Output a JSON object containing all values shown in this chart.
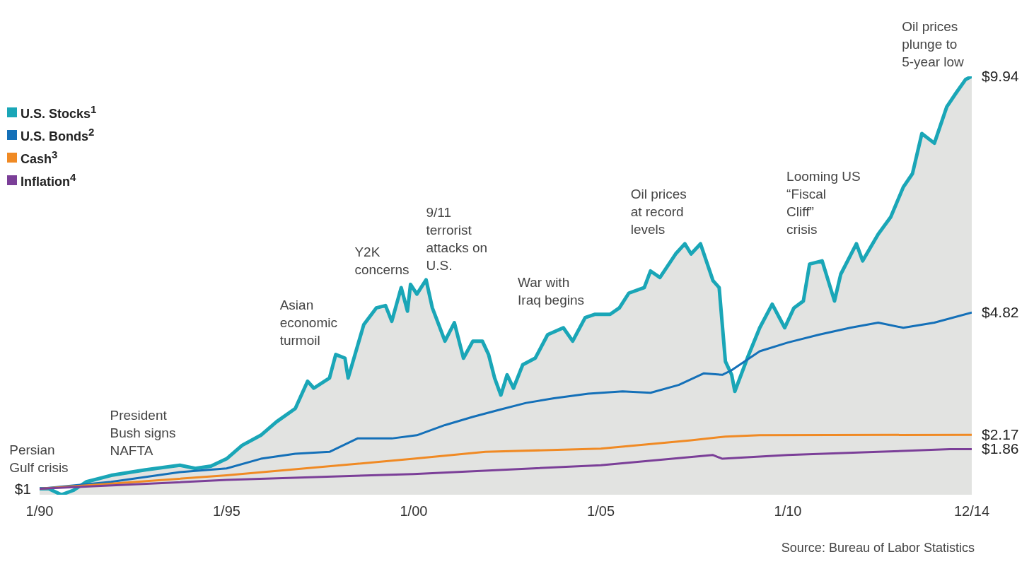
{
  "chart_data": {
    "type": "line",
    "legend": "top left",
    "tick_labels": "x",
    "grid": false,
    "marker": "none",
    "xlim": [
      "1990-01",
      "2014-12"
    ],
    "xticks": [
      {
        "value": "1990-01",
        "label": "1/90"
      },
      {
        "value": "1995-01",
        "label": "1/95"
      },
      {
        "value": "2000-01",
        "label": "1/00"
      },
      {
        "value": "2005-01",
        "label": "1/05"
      },
      {
        "value": "2010-01",
        "label": "1/10"
      },
      {
        "value": "2014-12",
        "label": "12/14"
      }
    ],
    "series": [
      {
        "name": "U.S. Stocks$^{1}$",
        "type": "area",
        "color": "#1aa6b7",
        "x": [
          "1990-01",
          "1990-04",
          "1990-08",
          "1990-12",
          "1991-04",
          "1991-12",
          "1992-11",
          "1993-10",
          "1994-03",
          "1994-08",
          "1995-01",
          "1995-06",
          "1995-12",
          "1996-05",
          "1996-11",
          "1997-03",
          "1997-05",
          "1997-10",
          "1997-12",
          "1998-03",
          "1998-04",
          "1998-09",
          "1999-01",
          "1999-04",
          "1999-06",
          "1999-09",
          "1999-11",
          "1999-12",
          "2000-02",
          "2000-05",
          "2000-07",
          "2000-09",
          "2000-11",
          "2001-02",
          "2001-05",
          "2001-08",
          "2001-11",
          "2002-01",
          "2002-03",
          "2002-05",
          "2002-07",
          "2002-09",
          "2002-12",
          "2003-04",
          "2003-08",
          "2004-01",
          "2004-04",
          "2004-08",
          "2004-11",
          "2005-04",
          "2005-07",
          "2005-10",
          "2006-03",
          "2006-05",
          "2006-08",
          "2007-01",
          "2007-04",
          "2007-06",
          "2007-09",
          "2008-01",
          "2008-03",
          "2008-05",
          "2008-07",
          "2008-08",
          "2008-12",
          "2009-04",
          "2009-08",
          "2009-12",
          "2010-03",
          "2010-06",
          "2010-08",
          "2010-12",
          "2011-04",
          "2011-06",
          "2011-11",
          "2012-01",
          "2012-06",
          "2012-10",
          "2013-02",
          "2013-05",
          "2013-08",
          "2013-12",
          "2014-04",
          "2014-07",
          "2014-10",
          "2014-12"
        ],
        "values": [
          1.0,
          1.0,
          0.87,
          0.97,
          1.15,
          1.29,
          1.41,
          1.51,
          1.44,
          1.49,
          1.65,
          1.94,
          2.16,
          2.45,
          2.74,
          3.33,
          3.18,
          3.4,
          3.91,
          3.83,
          3.4,
          4.56,
          4.92,
          4.97,
          4.63,
          5.36,
          4.85,
          5.43,
          5.22,
          5.53,
          4.92,
          4.56,
          4.2,
          4.6,
          3.83,
          4.2,
          4.2,
          3.91,
          3.4,
          3.03,
          3.47,
          3.18,
          3.69,
          3.83,
          4.34,
          4.49,
          4.2,
          4.71,
          4.78,
          4.78,
          4.92,
          5.24,
          5.36,
          5.72,
          5.58,
          6.09,
          6.31,
          6.09,
          6.31,
          5.51,
          5.36,
          3.76,
          3.47,
          3.11,
          3.83,
          4.49,
          5.0,
          4.49,
          4.92,
          5.07,
          5.87,
          5.94,
          5.07,
          5.65,
          6.31,
          5.94,
          6.52,
          6.89,
          7.54,
          7.83,
          8.7,
          8.49,
          9.28,
          9.58,
          9.87,
          9.94
        ],
        "value_labels": [
          null,
          null,
          null,
          null,
          null,
          null,
          null,
          null,
          null,
          null,
          null,
          null,
          null,
          null,
          null,
          null,
          null,
          null,
          null,
          null,
          null,
          null,
          null,
          null,
          null,
          null,
          null,
          null,
          null,
          null,
          null,
          null,
          null,
          null,
          null,
          null,
          null,
          null,
          null,
          null,
          null,
          null,
          null,
          null,
          null,
          null,
          null,
          null,
          null,
          null,
          null,
          null,
          null,
          null,
          null,
          null,
          null,
          null,
          null,
          null,
          null,
          null,
          null,
          null,
          null,
          null,
          null,
          null,
          null,
          null,
          null,
          null,
          null,
          null,
          null,
          null,
          null,
          null,
          null,
          null,
          null,
          null,
          null,
          null,
          null,
          "$9.94"
        ]
      },
      {
        "name": "U.S. Bonds$^{2}$",
        "color": "#1470b8",
        "x": [
          "1990-01",
          "1991-12",
          "1993-10",
          "1995-01",
          "1995-12",
          "1996-11",
          "1997-10",
          "1998-07",
          "1999-06",
          "2000-02",
          "2000-11",
          "2001-08",
          "2002-05",
          "2003-01",
          "2003-10",
          "2004-09",
          "2005-08",
          "2006-05",
          "2007-02",
          "2007-10",
          "2008-04",
          "2008-07",
          "2009-04",
          "2010-01",
          "2010-11",
          "2011-09",
          "2012-06",
          "2013-02",
          "2013-12",
          "2014-12"
        ],
        "values": [
          1.0,
          1.15,
          1.36,
          1.44,
          1.65,
          1.76,
          1.8,
          2.09,
          2.09,
          2.16,
          2.38,
          2.56,
          2.72,
          2.86,
          2.96,
          3.06,
          3.11,
          3.08,
          3.25,
          3.5,
          3.47,
          3.57,
          3.98,
          4.17,
          4.34,
          4.49,
          4.6,
          4.49,
          4.6,
          4.82
        ],
        "value_labels": [
          null,
          null,
          null,
          null,
          null,
          null,
          null,
          null,
          null,
          null,
          null,
          null,
          null,
          null,
          null,
          null,
          null,
          null,
          null,
          null,
          null,
          null,
          null,
          null,
          null,
          null,
          null,
          null,
          null,
          "$4.82"
        ]
      },
      {
        "name": "Cash$^{3}$",
        "color": "#f08a24",
        "x": [
          "1990-01",
          "1995-01",
          "2000-01",
          "2001-12",
          "2005-01",
          "2007-06",
          "2008-05",
          "2009-04",
          "2014-12"
        ],
        "values": [
          1.0,
          1.29,
          1.65,
          1.8,
          1.87,
          2.05,
          2.13,
          2.16,
          2.17
        ],
        "value_labels": [
          null,
          null,
          null,
          null,
          null,
          null,
          null,
          null,
          "$2.17"
        ]
      },
      {
        "name": "Inflation$^{4}$",
        "color": "#7b3f98",
        "x": [
          "1990-01",
          "1995-01",
          "2000-01",
          "2005-01",
          "2008-01",
          "2008-04",
          "2010-01",
          "2012-06",
          "2014-05",
          "2014-12"
        ],
        "values": [
          1.0,
          1.19,
          1.32,
          1.51,
          1.73,
          1.65,
          1.73,
          1.8,
          1.86,
          1.86
        ],
        "value_labels": [
          "$1",
          null,
          null,
          null,
          null,
          null,
          null,
          null,
          null,
          "$1.86"
        ]
      }
    ],
    "annotations": [
      {
        "text": "Persian Gulf crisis",
        "x": "1991-04",
        "y": 1.15
      },
      {
        "text": "President Bush signs NAFTA",
        "x": "1993-10",
        "y": 1.51
      },
      {
        "text": "Asian economic turmoil",
        "x": "1997-12",
        "y": 3.91
      },
      {
        "text": "Y2K concerns",
        "x": "1999-12",
        "y": 5.43
      },
      {
        "text": "9/11 terrorist attacks on U.S.",
        "x": "2000-05",
        "y": 5.53
      },
      {
        "text": "War with Iraq begins",
        "x": "2004-11",
        "y": 4.78
      },
      {
        "text": "Oil prices at record levels",
        "x": "2007-09",
        "y": 6.31
      },
      {
        "text": "Looming US “Fiscal Cliff” crisis",
        "x": "2011-11",
        "y": 6.31
      },
      {
        "text": "Oil prices plunge to 5-year low",
        "x": "2014-12",
        "y": 9.94
      },
      "Source: Bureau of Labor Statistics"
    ]
  }
}
